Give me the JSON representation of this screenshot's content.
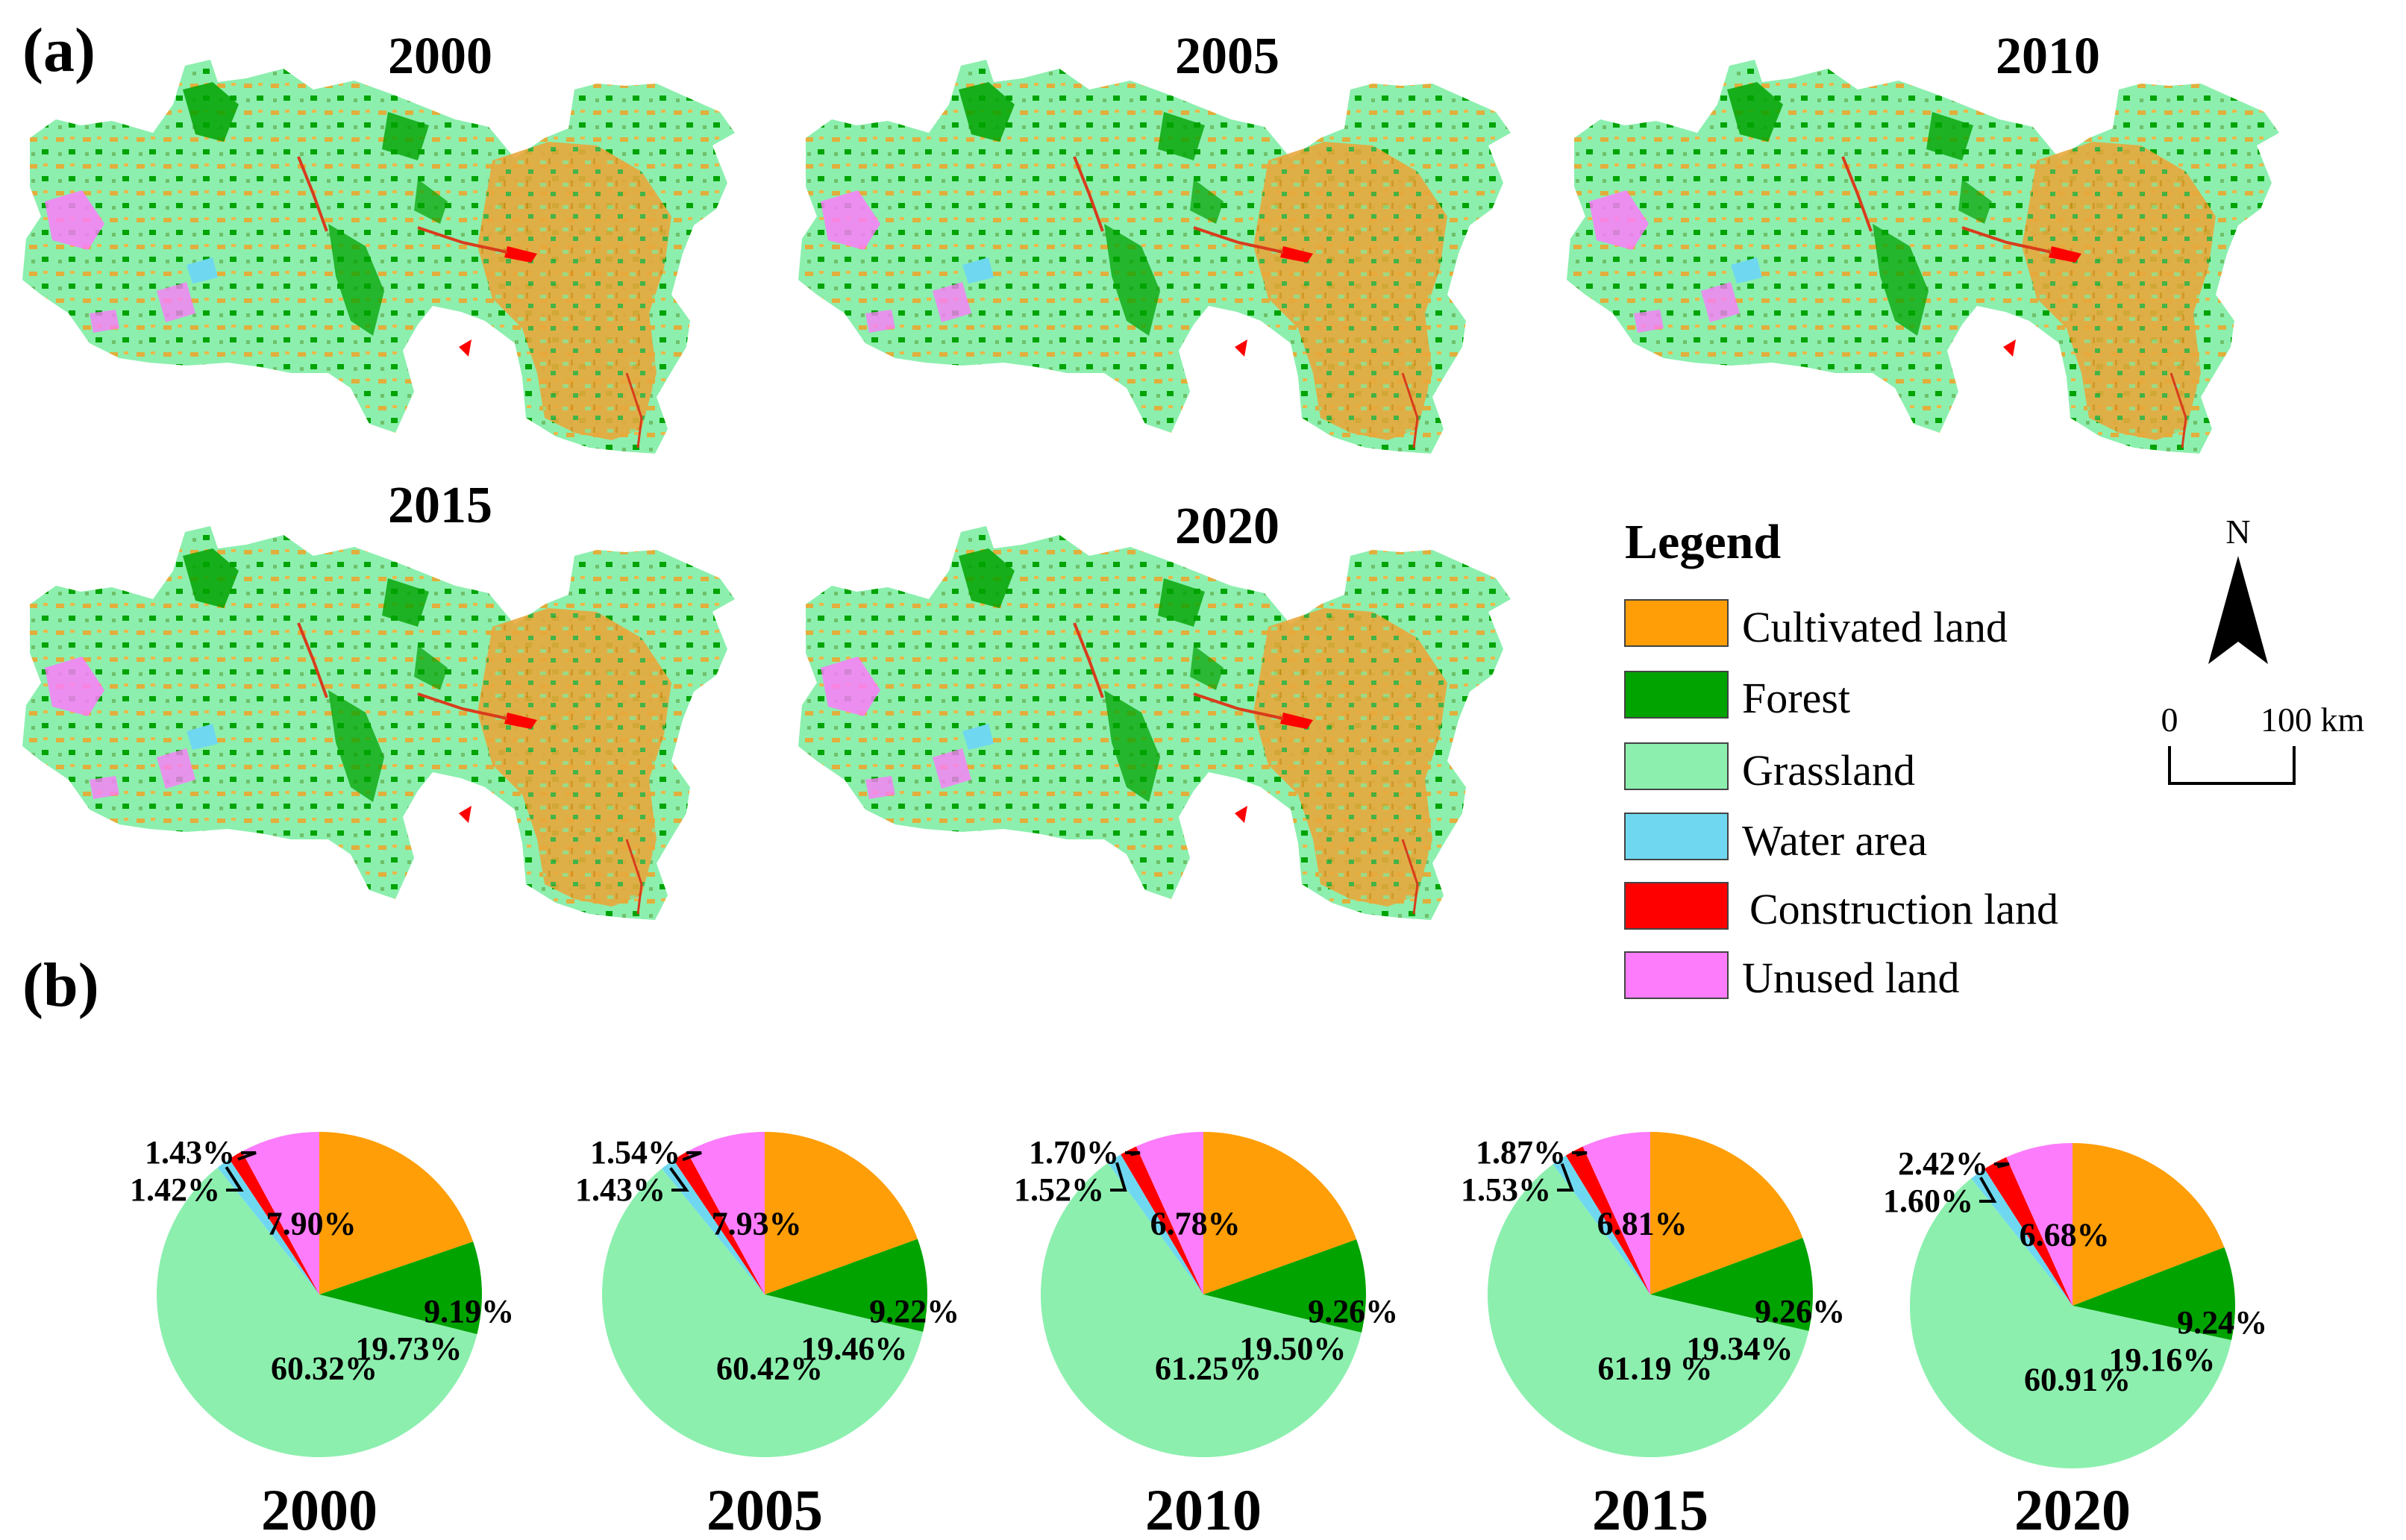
{
  "panel_a_label": "(a)",
  "panel_b_label": "(b)",
  "maps": [
    {
      "year": "2000"
    },
    {
      "year": "2005"
    },
    {
      "year": "2010"
    },
    {
      "year": "2015"
    },
    {
      "year": "2020"
    }
  ],
  "legend": {
    "title": "Legend",
    "items": [
      {
        "label": "Cultivated land",
        "color": "#FF9E06"
      },
      {
        "label": "Forest",
        "color": "#01A301"
      },
      {
        "label": "Grassland",
        "color": "#8CEFAE"
      },
      {
        "label": "Water area",
        "color": "#6FD8F0"
      },
      {
        "label": "Construction land",
        "color": "#FF0000"
      },
      {
        "label": "Unused land",
        "color": "#FC7CFB"
      }
    ]
  },
  "north_arrow": {
    "label": "N"
  },
  "scale_bar": {
    "start": "0",
    "end": "100 km"
  },
  "chart_data": {
    "type": "pie",
    "title": "",
    "categories": [
      "Cultivated land",
      "Forest",
      "Grassland",
      "Water area",
      "Construction land",
      "Unused land"
    ],
    "colors": [
      "#FF9E06",
      "#01A301",
      "#8CEFAE",
      "#6FD8F0",
      "#FF0000",
      "#FC7CFB"
    ],
    "pies": [
      {
        "year": "2000",
        "values": [
          19.73,
          9.19,
          60.32,
          1.42,
          1.43,
          7.9
        ],
        "labels": [
          "19.73%",
          "9.19%",
          "60.32%",
          "1.42%",
          "1.43%",
          "7.90%"
        ]
      },
      {
        "year": "2005",
        "values": [
          19.46,
          9.22,
          60.42,
          1.43,
          1.54,
          7.93
        ],
        "labels": [
          "19.46%",
          "9.22%",
          "60.42%",
          "1.43%",
          "1.54%",
          "7.93%"
        ]
      },
      {
        "year": "2010",
        "values": [
          19.5,
          9.26,
          61.25,
          1.52,
          1.7,
          6.78
        ],
        "labels": [
          "19.50%",
          "9.26%",
          "61.25%",
          "1.52%",
          "1.70%",
          "6.78%"
        ]
      },
      {
        "year": "2015",
        "values": [
          19.34,
          9.26,
          61.19,
          1.53,
          1.87,
          6.81
        ],
        "labels": [
          "19.34%",
          "9.26%",
          "61.19 %",
          "1.53%",
          "1.87%",
          "6.81%"
        ]
      },
      {
        "year": "2020",
        "values": [
          19.16,
          9.24,
          60.91,
          1.6,
          2.42,
          6.68
        ],
        "labels": [
          "19.16%",
          "9.24%",
          "60.91%",
          "1.60%",
          "2.42%",
          "6.68%"
        ]
      }
    ]
  }
}
